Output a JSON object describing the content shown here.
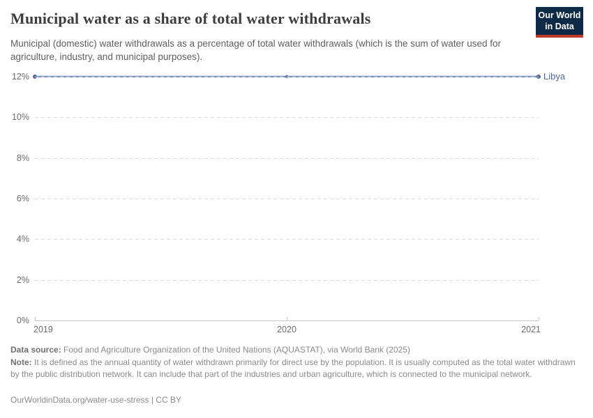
{
  "header": {
    "title": "Municipal water as a share of total water withdrawals",
    "subtitle": "Municipal (domestic) water withdrawals as a percentage of total water withdrawals (which is the sum of water used for agriculture, industry, and municipal purposes).",
    "logo": {
      "line1": "Our World",
      "line2": "in Data",
      "bg_color": "#0e2a47",
      "accent_color": "#c23b28"
    }
  },
  "chart_data": {
    "type": "line",
    "title": "Municipal water as a share of total water withdrawals",
    "x": [
      2019,
      2020,
      2021
    ],
    "x_labels": [
      "2019",
      "2020",
      "2021"
    ],
    "series": [
      {
        "name": "Libya",
        "values": [
          12,
          12,
          12
        ],
        "line_color": "#7d94bd",
        "marker_color": "#51699b",
        "label_color": "#4f69a2"
      }
    ],
    "ylim": [
      0,
      12
    ],
    "yticks": [
      12,
      10,
      8,
      6,
      4,
      2,
      0
    ],
    "ytick_labels": [
      "12%",
      "10%",
      "8%",
      "6%",
      "4%",
      "2%",
      "0%"
    ],
    "xlabel": "",
    "ylabel": "",
    "grid": "horizontal-dashed",
    "legend": "inline-entity-label",
    "axis_color": "#c8c8c8",
    "gridline_color": "#dcdcdc"
  },
  "footer": {
    "source_label": "Data source:",
    "source_text": " Food and Agriculture Organization of the United Nations (AQUASTAT), via World Bank (2025)",
    "note_label": "Note:",
    "note_text": " It is defined as the annual quantity of water withdrawn primarily for direct use by the population. It is usually computed as the total water withdrawn by the public distribution network. It can include that part of the industries and urban agriculture, which is connected to the municipal network.",
    "url": "OurWorldinData.org/water-use-stress",
    "license": " | CC BY"
  }
}
